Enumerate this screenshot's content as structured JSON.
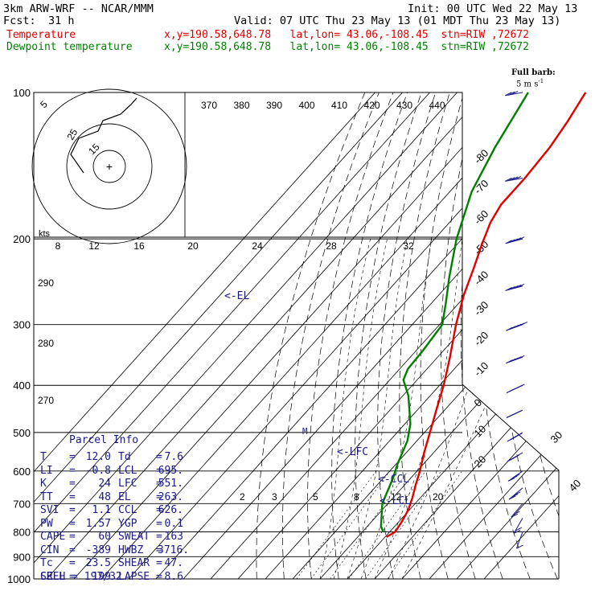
{
  "header": {
    "title": "3km ARW-WRF -- NCAR/MMM",
    "init": "Init: 00 UTC Wed 22 May 13",
    "fcst_label": "Fcst:",
    "fcst_value": "31 h",
    "valid": "Valid: 07 UTC Thu 23 May 13 (01 MDT Thu 23 May 13)",
    "temp_label": "Temperature",
    "temp_info": "x,y=190.58,648.78   lat,lon= 43.06,-108.45  stn=RIW ,72672",
    "dew_label": "Dewpoint temperature",
    "dew_info": "x,y=190.58,648.78   lat,lon= 43.06,-108.45  stn=RIW ,72672",
    "full_barb": "Full barb:",
    "full_barb_unit": "5 m s",
    "full_barb_exp": "-1"
  },
  "parcel_info": {
    "title": "Parcel Info",
    "rows": [
      {
        "l1": "T",
        "v1": "12.0",
        "l2": "Td",
        "v2": "7.6"
      },
      {
        "l1": "LI",
        "v1": "-0.8",
        "l2": "LCL",
        "v2": "695."
      },
      {
        "l1": "K",
        "v1": "24",
        "l2": "LFC",
        "v2": "551."
      },
      {
        "l1": "TT",
        "v1": "48",
        "l2": "EL",
        "v2": "263."
      },
      {
        "l1": "SVI",
        "v1": "1.1",
        "l2": "CCL",
        "v2": "626."
      },
      {
        "l1": "PW",
        "v1": "1.57",
        "l2": "YGP",
        "v2": "0.1"
      },
      {
        "l1": "CAPE",
        "v1": "60",
        "l2": "SWEAT",
        "v2": "163"
      },
      {
        "l1": "CIN",
        "v1": "-389",
        "l2": "HWBZ",
        "v2": "3716."
      },
      {
        "l1": "Tc",
        "v1": "23.5",
        "l2": "SHEAR",
        "v2": "47."
      },
      {
        "l1": "SREH",
        "v1": "199",
        "l2": "LAPSE",
        "v2": "8.6"
      }
    ],
    "cell": "CELL = 197/32"
  },
  "annotations": {
    "el": "<-EL",
    "lfc": "<-LFC",
    "ccl": "<-CCL",
    "lcl": "<-LCL",
    "parcel_mark": "M"
  },
  "colors": {
    "temperature": "#e00000",
    "dewpoint": "#008000",
    "grid": "#000000",
    "annotation": "#1a1a8c",
    "wind": "#1a1a8c"
  },
  "chart_data": {
    "type": "line",
    "chart_kind": "skew-T log-P sounding",
    "y_axis_scale": "log pressure",
    "pressure_levels": [
      1000,
      900,
      800,
      700,
      600,
      500,
      400,
      300,
      200,
      100
    ],
    "isotherm_labels": [
      "-80",
      "-70",
      "-60",
      "-50",
      "-40",
      "-30",
      "-20",
      "-10",
      "0",
      "10",
      "20",
      "30",
      "40"
    ],
    "theta_labels": [
      "370",
      "380",
      "390",
      "400",
      "410",
      "420",
      "430",
      "440"
    ],
    "theta_side_labels": [
      "290",
      "280",
      "270"
    ],
    "mixing_ratio_labels": [
      "2",
      "3",
      "5",
      "8",
      "12",
      "20"
    ],
    "hodograph": {
      "units_label": "kts",
      "speed_labels": [
        "8",
        "12",
        "16",
        "20",
        "24",
        "28",
        "32"
      ],
      "ring_labels": [
        "5",
        "25",
        "15"
      ],
      "center_mark": "+"
    },
    "series": [
      {
        "name": "Temperature",
        "points": [
          {
            "p": 820,
            "t": 10.5
          },
          {
            "p": 800,
            "t": 12.0
          },
          {
            "p": 760,
            "t": 11.0
          },
          {
            "p": 720,
            "t": 9.5
          },
          {
            "p": 680,
            "t": 7.0
          },
          {
            "p": 640,
            "t": 4.0
          },
          {
            "p": 600,
            "t": 1.0
          },
          {
            "p": 550,
            "t": -3.5
          },
          {
            "p": 500,
            "t": -8.0
          },
          {
            "p": 450,
            "t": -13.0
          },
          {
            "p": 400,
            "t": -18.5
          },
          {
            "p": 350,
            "t": -25.5
          },
          {
            "p": 300,
            "t": -34.0
          },
          {
            "p": 260,
            "t": -41.0
          },
          {
            "p": 230,
            "t": -46.0
          },
          {
            "p": 205,
            "t": -51.0
          },
          {
            "p": 185,
            "t": -55.0
          },
          {
            "p": 170,
            "t": -57.0
          },
          {
            "p": 150,
            "t": -57.0
          },
          {
            "p": 130,
            "t": -58.0
          },
          {
            "p": 115,
            "t": -60.0
          },
          {
            "p": 100,
            "t": -63.0
          }
        ]
      },
      {
        "name": "Dewpoint temperature",
        "points": [
          {
            "p": 800,
            "t": 7.6
          },
          {
            "p": 780,
            "t": 5.0
          },
          {
            "p": 700,
            "t": -2.0
          },
          {
            "p": 620,
            "t": -6.5
          },
          {
            "p": 580,
            "t": -9.5
          },
          {
            "p": 520,
            "t": -13.5
          },
          {
            "p": 480,
            "t": -18.0
          },
          {
            "p": 420,
            "t": -28.0
          },
          {
            "p": 390,
            "t": -35.0
          },
          {
            "p": 370,
            "t": -37.0
          },
          {
            "p": 340,
            "t": -37.5
          },
          {
            "p": 300,
            "t": -39.0
          },
          {
            "p": 270,
            "t": -45.0
          },
          {
            "p": 240,
            "t": -52.0
          },
          {
            "p": 200,
            "t": -62.0
          },
          {
            "p": 160,
            "t": -72.0
          },
          {
            "p": 130,
            "t": -78.0
          },
          {
            "p": 100,
            "t": -84.0
          }
        ]
      }
    ],
    "wind_profile": [
      {
        "p": 800,
        "dir": 200,
        "kts": 15
      },
      {
        "p": 750,
        "dir": 210,
        "kts": 20
      },
      {
        "p": 700,
        "dir": 220,
        "kts": 25
      },
      {
        "p": 650,
        "dir": 230,
        "kts": 30
      },
      {
        "p": 600,
        "dir": 235,
        "kts": 35
      },
      {
        "p": 550,
        "dir": 240,
        "kts": 35
      },
      {
        "p": 500,
        "dir": 240,
        "kts": 40
      },
      {
        "p": 450,
        "dir": 245,
        "kts": 45
      },
      {
        "p": 400,
        "dir": 245,
        "kts": 50
      },
      {
        "p": 350,
        "dir": 250,
        "kts": 55
      },
      {
        "p": 300,
        "dir": 250,
        "kts": 60
      },
      {
        "p": 250,
        "dir": 255,
        "kts": 55
      },
      {
        "p": 200,
        "dir": 255,
        "kts": 50
      },
      {
        "p": 150,
        "dir": 260,
        "kts": 40
      },
      {
        "p": 100,
        "dir": 260,
        "kts": 30
      }
    ]
  }
}
